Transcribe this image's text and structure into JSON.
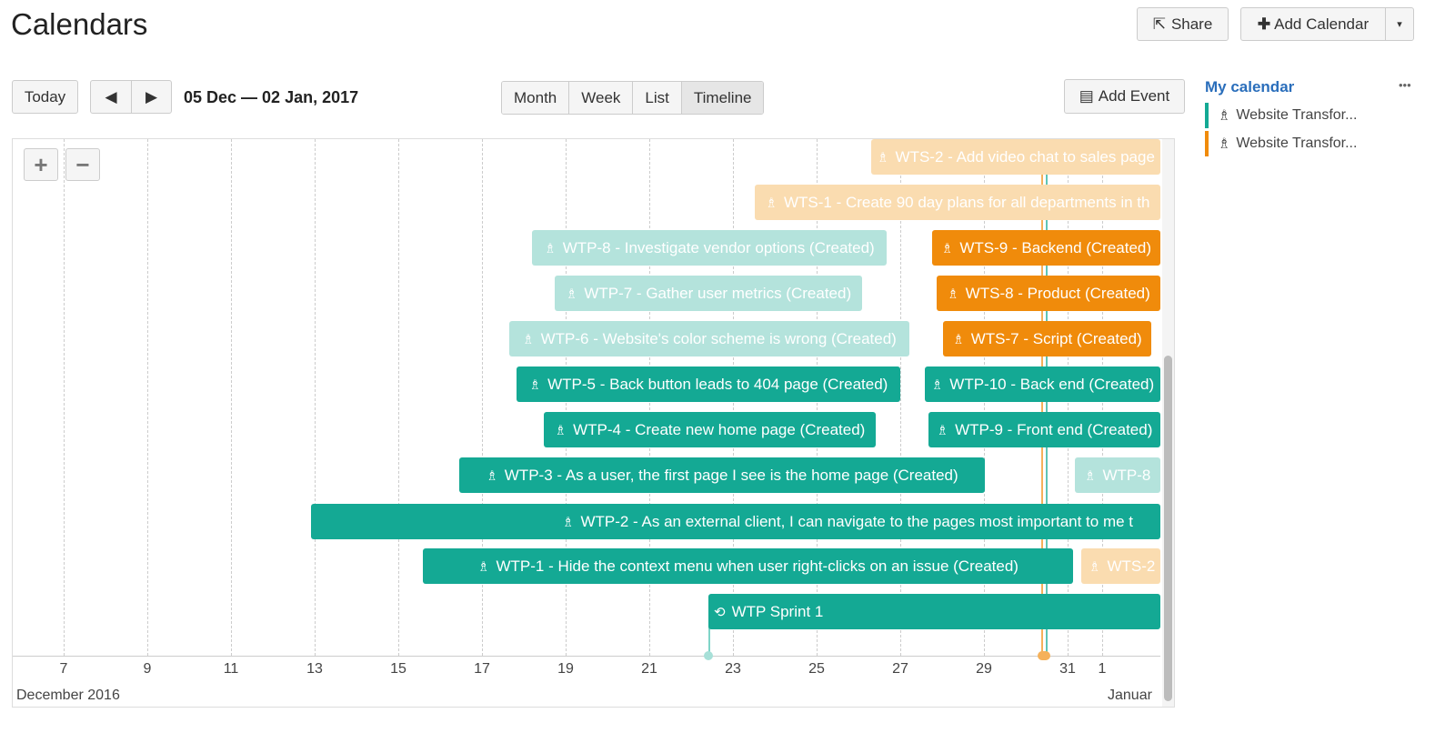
{
  "title": "Calendars",
  "header": {
    "share": "Share",
    "add_calendar": "Add Calendar"
  },
  "toolbar": {
    "today": "Today",
    "prev": "◀",
    "next": "▶",
    "range": "05 Dec — 02 Jan, 2017",
    "views": [
      "Month",
      "Week",
      "List",
      "Timeline"
    ],
    "active_view": "Timeline",
    "add_event": "Add Event"
  },
  "sidebar": {
    "title": "My calendar",
    "more": "•••",
    "calendars": [
      {
        "name": "Website Transfor...",
        "color": "#14a994"
      },
      {
        "name": "Website Transfor...",
        "color": "#f08b0b"
      }
    ]
  },
  "timeline": {
    "ticks": [
      "7",
      "9",
      "11",
      "13",
      "15",
      "17",
      "19",
      "21",
      "23",
      "25",
      "27",
      "29",
      "31",
      "1"
    ],
    "month_left": "December 2016",
    "month_right": "Januar",
    "events": [
      "WTS-2 - Add video chat to sales page",
      "WTS-1 - Create 90 day plans for all departments in th",
      "WTP-8 - Investigate vendor options (Created)",
      "WTS-9 - Backend (Created)",
      "WTP-7 - Gather user metrics (Created)",
      "WTS-8 - Product (Created)",
      "WTP-6 - Website's color scheme is wrong (Created)",
      "WTS-7 - Script (Created)",
      "WTP-5 - Back button leads to 404 page (Created)",
      "WTP-10 - Back end (Created)",
      "WTP-4 - Create new home page (Created)",
      "WTP-9 - Front end (Created)",
      "WTP-3 - As a user, the first page I see is the home page (Created)",
      "WTP-8",
      "WTP-2 - As an external client, I can navigate to the pages most important to me t",
      "WTP-1 - Hide the context menu when user right-clicks on an issue (Created)",
      "WTS-2",
      "WTP Sprint 1"
    ],
    "zoom_in": "+",
    "zoom_out": "−"
  },
  "colors": {
    "teal": "#14a994",
    "teal_light": "#b4e3dc",
    "orange": "#f08b0b",
    "orange_light": "#fadcb0"
  }
}
